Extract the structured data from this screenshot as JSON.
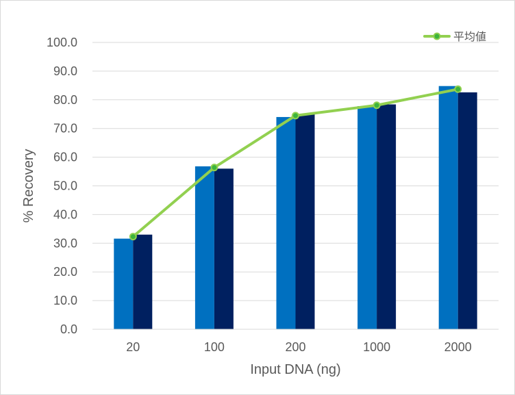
{
  "chart_data": {
    "type": "bar",
    "categories": [
      "20",
      "100",
      "200",
      "1000",
      "2000"
    ],
    "series": [
      {
        "values": [
          31.6,
          56.8,
          74.0,
          77.8,
          84.8
        ],
        "color": "#0070c0",
        "kind": "bar"
      },
      {
        "values": [
          33.0,
          56.0,
          75.0,
          78.4,
          82.6
        ],
        "color": "#002060",
        "kind": "bar"
      },
      {
        "name": "平均値",
        "values": [
          32.3,
          56.4,
          74.5,
          78.1,
          83.7
        ],
        "color": "#92d050",
        "kind": "line"
      }
    ],
    "xlabel": "Input DNA (ng)",
    "ylabel": "% Recovery",
    "ylim": [
      0,
      100
    ],
    "yticks": [
      "0.0",
      "10.0",
      "20.0",
      "30.0",
      "40.0",
      "50.0",
      "60.0",
      "70.0",
      "80.0",
      "90.0",
      "100.0"
    ],
    "grid": true,
    "legend_position": "top-right"
  }
}
